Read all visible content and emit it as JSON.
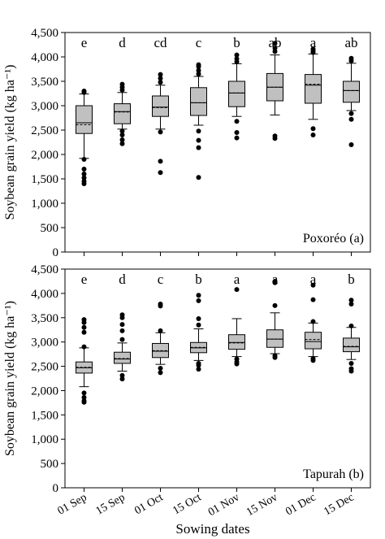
{
  "figure": {
    "shared_xlabel": "Sowing dates",
    "box_fill": "#c0c0c0",
    "outlier_color": "#000000",
    "mean_line_style": "dashed"
  },
  "chart_data": [
    {
      "type": "box",
      "panel_label": "Poxoréo (a)",
      "ylabel": "Soybean grain yield (kg ha⁻¹)",
      "ylim": [
        0,
        4500
      ],
      "yticks": [
        "0",
        "500",
        "1,000",
        "1,500",
        "2,000",
        "2,500",
        "3,000",
        "3,500",
        "4,000",
        "4,500"
      ],
      "ytick_values": [
        0,
        500,
        1000,
        1500,
        2000,
        2500,
        3000,
        3500,
        4000,
        4500
      ],
      "grid": false,
      "categories": [
        "01 Sep",
        "15 Sep",
        "01 Oct",
        "15 Oct",
        "01 Nov",
        "15 Nov",
        "01 Dec",
        "15 Dec"
      ],
      "letters": [
        "e",
        "d",
        "cd",
        "c",
        "b",
        "ab",
        "a",
        "ab"
      ],
      "boxes": [
        {
          "whisker_low": 1920,
          "q1": 2430,
          "median": 2650,
          "mean": 2610,
          "q3": 3000,
          "whisker_high": 3240,
          "outliers": [
            1900,
            1700,
            1600,
            1520,
            1450,
            1400,
            3270,
            3300
          ]
        },
        {
          "whisker_low": 2520,
          "q1": 2630,
          "median": 2880,
          "mean": 2870,
          "q3": 3040,
          "whisker_high": 3270,
          "outliers": [
            2480,
            2400,
            2300,
            2220,
            3320,
            3380,
            3440
          ]
        },
        {
          "whisker_low": 2520,
          "q1": 2780,
          "median": 2970,
          "mean": 2960,
          "q3": 3200,
          "whisker_high": 3420,
          "outliers": [
            2460,
            1860,
            1630,
            3480,
            3560,
            3640
          ]
        },
        {
          "whisker_low": 2600,
          "q1": 2800,
          "median": 3060,
          "mean": 3060,
          "q3": 3370,
          "whisker_high": 3600,
          "outliers": [
            2480,
            2290,
            2140,
            1530,
            3650,
            3720,
            3800,
            3840
          ]
        },
        {
          "whisker_low": 2780,
          "q1": 2980,
          "median": 3260,
          "mean": 3260,
          "q3": 3500,
          "whisker_high": 3860,
          "outliers": [
            2680,
            2450,
            2340,
            3900,
            3960,
            4040
          ]
        },
        {
          "whisker_low": 2810,
          "q1": 3100,
          "median": 3380,
          "mean": 3380,
          "q3": 3660,
          "whisker_high": 4040,
          "outliers": [
            2380,
            2330,
            4110,
            4180,
            4280
          ]
        },
        {
          "whisker_low": 2720,
          "q1": 3050,
          "median": 3420,
          "mean": 3440,
          "q3": 3640,
          "whisker_high": 4060,
          "outliers": [
            2530,
            2400,
            4090,
            4120,
            4160
          ]
        },
        {
          "whisker_low": 2900,
          "q1": 3070,
          "median": 3310,
          "mean": 3310,
          "q3": 3500,
          "whisker_high": 3870,
          "outliers": [
            2840,
            2720,
            2200,
            3920,
            3970
          ]
        }
      ]
    },
    {
      "type": "box",
      "panel_label": "Tapurah (b)",
      "ylabel": "Soybean grain yield (kg ha⁻¹)",
      "xlabel": "Sowing dates",
      "ylim": [
        0,
        4500
      ],
      "yticks": [
        "0",
        "500",
        "1,000",
        "1,500",
        "2,000",
        "2,500",
        "3,000",
        "3,500",
        "4,000",
        "4,500"
      ],
      "ytick_values": [
        0,
        500,
        1000,
        1500,
        2000,
        2500,
        3000,
        3500,
        4000,
        4500
      ],
      "grid": false,
      "categories": [
        "01 Sep",
        "15 Sep",
        "01 Oct",
        "15 Oct",
        "01 Nov",
        "15 Nov",
        "01 Dec",
        "15 Dec"
      ],
      "letters": [
        "e",
        "d",
        "c",
        "b",
        "a",
        "a",
        "a",
        "b"
      ],
      "boxes": [
        {
          "whisker_low": 2080,
          "q1": 2360,
          "median": 2470,
          "mean": 2480,
          "q3": 2590,
          "whisker_high": 2880,
          "outliers": [
            1950,
            1860,
            1790,
            1760,
            2900,
            3200,
            3300,
            3400,
            3460
          ]
        },
        {
          "whisker_low": 2400,
          "q1": 2560,
          "median": 2650,
          "mean": 2660,
          "q3": 2790,
          "whisker_high": 2980,
          "outliers": [
            2310,
            2240,
            3050,
            3230,
            3360,
            3500,
            3560
          ]
        },
        {
          "whisker_low": 2540,
          "q1": 2680,
          "median": 2810,
          "mean": 2820,
          "q3": 2970,
          "whisker_high": 3190,
          "outliers": [
            2460,
            2370,
            3230,
            3740,
            3780
          ]
        },
        {
          "whisker_low": 2620,
          "q1": 2780,
          "median": 2880,
          "mean": 2890,
          "q3": 2990,
          "whisker_high": 3270,
          "outliers": [
            2560,
            2520,
            2440,
            3350,
            3480,
            3850,
            3960
          ]
        },
        {
          "whisker_low": 2700,
          "q1": 2850,
          "median": 2990,
          "mean": 2980,
          "q3": 3150,
          "whisker_high": 3480,
          "outliers": [
            2650,
            2590,
            2550,
            4080
          ]
        },
        {
          "whisker_low": 2760,
          "q1": 2890,
          "median": 3060,
          "mean": 3060,
          "q3": 3250,
          "whisker_high": 3600,
          "outliers": [
            2720,
            2680,
            3750,
            4220,
            4250
          ]
        },
        {
          "whisker_low": 2700,
          "q1": 2860,
          "median": 3010,
          "mean": 3050,
          "q3": 3200,
          "whisker_high": 3390,
          "outliers": [
            2660,
            2620,
            3420,
            3870,
            4170
          ]
        },
        {
          "whisker_low": 2640,
          "q1": 2800,
          "median": 2900,
          "mean": 2910,
          "q3": 3080,
          "whisker_high": 3300,
          "outliers": [
            2560,
            2450,
            2400,
            3330,
            3780,
            3860
          ]
        }
      ]
    }
  ]
}
